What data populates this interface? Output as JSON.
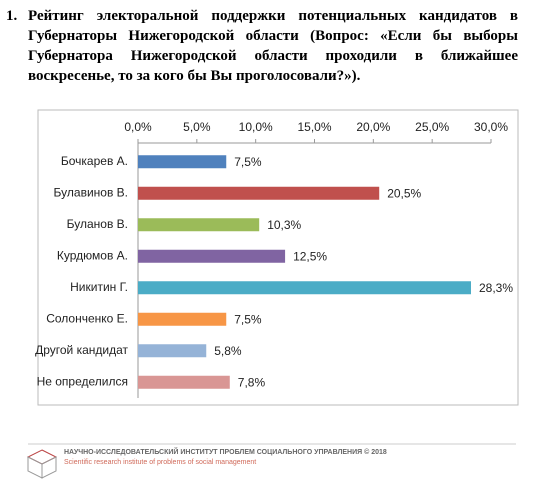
{
  "heading": {
    "number": "1.",
    "text": "Рейтинг электоральной поддержки потенциальных кандидатов в Губернаторы Нижегородской области (Вопрос: «Если бы выборы Губернатора Нижегородской области проходили в ближайшее воскресенье, то за кого бы Вы проголосовали?»)."
  },
  "chart_data": {
    "type": "hbar",
    "categories": [
      "Бочкарев А.",
      "Булавинов В.",
      "Буланов В.",
      "Курдюмов А.",
      "Никитин Г.",
      "Солонченко Е.",
      "Другой кандидат",
      "Не определился"
    ],
    "values": [
      7.5,
      20.5,
      10.3,
      12.5,
      28.3,
      7.5,
      5.8,
      7.8
    ],
    "value_labels": [
      "7,5%",
      "20,5%",
      "10,3%",
      "12,5%",
      "28,3%",
      "7,5%",
      "5,8%",
      "7,8%"
    ],
    "colors": [
      "#4F81BD",
      "#C0504D",
      "#9BBB59",
      "#8064A2",
      "#4BACC6",
      "#F79646",
      "#95B3D7",
      "#D99694"
    ],
    "xlim": [
      0,
      30
    ],
    "xticks": [
      {
        "value": 0,
        "label": "0,0%"
      },
      {
        "value": 5,
        "label": "5,0%"
      },
      {
        "value": 10,
        "label": "10,0%"
      },
      {
        "value": 15,
        "label": "15,0%"
      },
      {
        "value": 20,
        "label": "20,0%"
      },
      {
        "value": 25,
        "label": "25,0%"
      },
      {
        "value": 30,
        "label": "30,0%"
      }
    ]
  },
  "footer": {
    "org": "НАУЧНО-ИССЛЕДОВАТЕЛЬСКИЙ ИНСТИТУТ ПРОБЛЕМ СОЦИАЛЬНОГО УПРАВЛЕНИЯ  © 2018",
    "org_en": "Scientific research institute of problems of social management"
  }
}
